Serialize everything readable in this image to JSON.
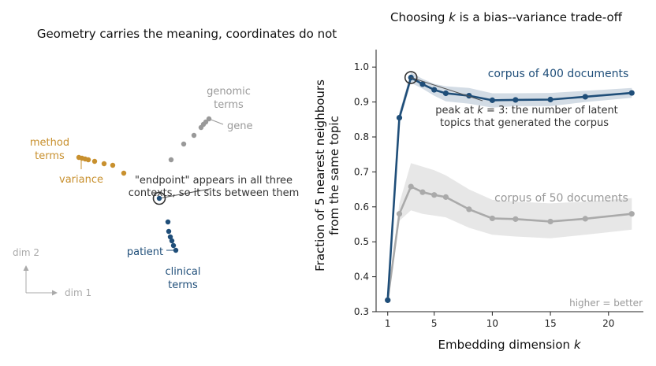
{
  "colors": {
    "navy": "#1f4e79",
    "gray": "#999999",
    "gold": "#c8902e",
    "band": "#d9d9d9",
    "dark": "#333333",
    "muted": "#aaaaaa"
  },
  "left_panel": {
    "title": "Geometry carries the meaning, coordinates do not",
    "axis_x_label": "dim 1",
    "axis_y_label": "dim 2",
    "clusters": {
      "genomic": {
        "label_line1": "genomic",
        "label_line2": "terms",
        "word": "gene"
      },
      "method": {
        "label_line1": "method",
        "label_line2": "terms",
        "word": "variance"
      },
      "clinical": {
        "label_line1": "clinical",
        "label_line2": "terms",
        "word": "patient"
      }
    },
    "endpoint_note_line1": "\"endpoint\" appears in all three",
    "endpoint_note_line2": "contexts, so it sits between them"
  },
  "chart_data": {
    "type": "line",
    "title_pre": "Choosing ",
    "title_k": "k",
    "title_post": " is a bias--variance trade-off",
    "xlabel_pre": "Embedding dimension ",
    "xlabel_k": "k",
    "ylabel_line1": "Fraction of 5 nearest neighbours",
    "ylabel_line2": "from the same topic",
    "xlim": [
      0,
      23
    ],
    "ylim": [
      0.3,
      1.05
    ],
    "x_ticks": [
      1,
      5,
      10,
      15,
      20
    ],
    "y_ticks": [
      0.3,
      0.4,
      0.5,
      0.6,
      0.7,
      0.8,
      0.9,
      1.0
    ],
    "y_tick_labels": [
      "0.3",
      "0.4",
      "0.5",
      "0.6",
      "0.7",
      "0.8",
      "0.9",
      "1.0"
    ],
    "series": [
      {
        "name": "corpus of 400 documents",
        "color": "#1f4e79",
        "x": [
          1,
          2,
          3,
          4,
          5,
          6,
          8,
          10,
          12,
          15,
          18,
          22
        ],
        "y": [
          0.333,
          0.855,
          0.97,
          0.951,
          0.935,
          0.925,
          0.918,
          0.905,
          0.906,
          0.907,
          0.915,
          0.926
        ],
        "band_low": [
          0.333,
          0.84,
          0.955,
          0.938,
          0.918,
          0.902,
          0.895,
          0.884,
          0.888,
          0.888,
          0.9,
          0.912
        ],
        "band_high": [
          0.333,
          0.87,
          0.985,
          0.966,
          0.952,
          0.945,
          0.94,
          0.925,
          0.925,
          0.926,
          0.932,
          0.94
        ]
      },
      {
        "name": "corpus of 50 documents",
        "color": "#aaaaaa",
        "x": [
          1,
          2,
          3,
          4,
          5,
          6,
          8,
          10,
          12,
          15,
          18,
          22
        ],
        "y": [
          0.333,
          0.58,
          0.658,
          0.642,
          0.634,
          0.628,
          0.593,
          0.567,
          0.565,
          0.558,
          0.566,
          0.58
        ],
        "band_low": [
          0.333,
          0.56,
          0.59,
          0.58,
          0.575,
          0.57,
          0.54,
          0.52,
          0.515,
          0.51,
          0.52,
          0.535
        ],
        "band_high": [
          0.333,
          0.61,
          0.725,
          0.715,
          0.705,
          0.69,
          0.65,
          0.62,
          0.615,
          0.61,
          0.615,
          0.625
        ]
      }
    ],
    "peak_annotation_line1_pre": "peak at ",
    "peak_annotation_line1_k": "k",
    "peak_annotation_line1_post": " = 3: the number of latent",
    "peak_annotation_line2": "topics that generated the corpus",
    "peak": {
      "x": 3,
      "y": 0.97
    },
    "corner_note": "higher = better"
  }
}
